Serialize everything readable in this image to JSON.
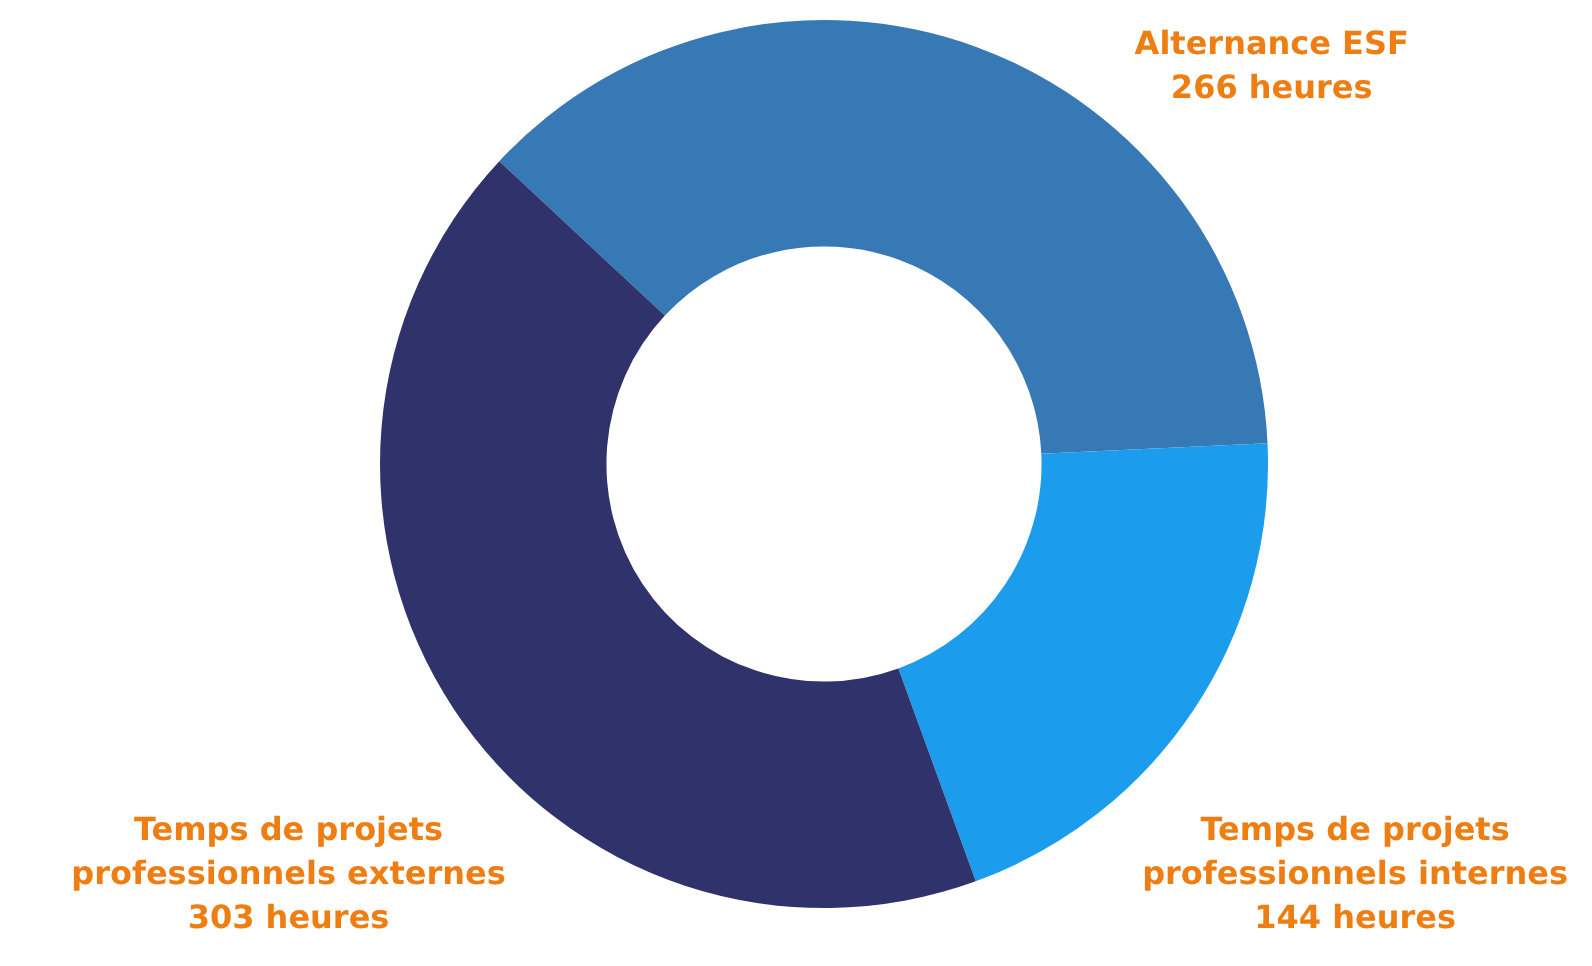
{
  "chart_data": {
    "type": "donut",
    "categories": [
      "Alternance ESF",
      "Temps de projets professionnels internes",
      "Temps de projets professionnels externes"
    ],
    "values": [
      266,
      144,
      303
    ],
    "colors": [
      "#3779b5",
      "#1c9cec",
      "#30336b"
    ],
    "value_labels": [
      "266 heures",
      "144 heures",
      "303 heures"
    ]
  }
}
